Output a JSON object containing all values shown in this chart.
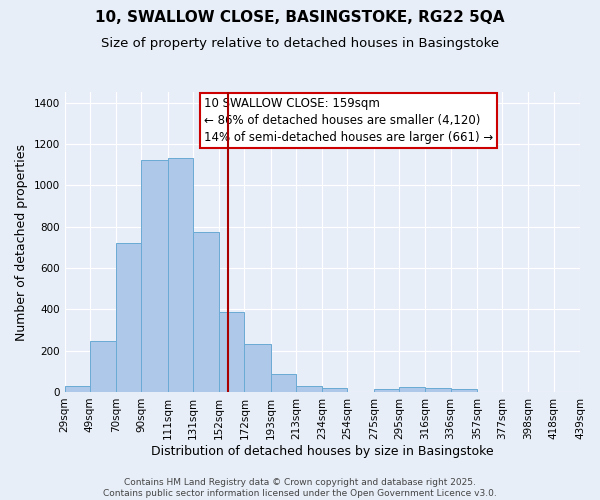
{
  "title": "10, SWALLOW CLOSE, BASINGSTOKE, RG22 5QA",
  "subtitle": "Size of property relative to detached houses in Basingstoke",
  "xlabel": "Distribution of detached houses by size in Basingstoke",
  "ylabel": "Number of detached properties",
  "bin_labels": [
    "29sqm",
    "49sqm",
    "70sqm",
    "90sqm",
    "111sqm",
    "131sqm",
    "152sqm",
    "172sqm",
    "193sqm",
    "213sqm",
    "234sqm",
    "254sqm",
    "275sqm",
    "295sqm",
    "316sqm",
    "336sqm",
    "357sqm",
    "377sqm",
    "398sqm",
    "418sqm",
    "439sqm"
  ],
  "bin_edges": [
    29,
    49,
    70,
    90,
    111,
    131,
    152,
    172,
    193,
    213,
    234,
    254,
    275,
    295,
    316,
    336,
    357,
    377,
    398,
    418,
    439
  ],
  "bar_heights": [
    30,
    245,
    720,
    1125,
    1135,
    775,
    385,
    230,
    85,
    30,
    20,
    0,
    15,
    25,
    20,
    15,
    0,
    0,
    0,
    0
  ],
  "bar_color": "#adc8e8",
  "bar_edgecolor": "#6aaad4",
  "vline_x": 159,
  "vline_color": "#aa0000",
  "annotation_title": "10 SWALLOW CLOSE: 159sqm",
  "annotation_line1": "← 86% of detached houses are smaller (4,120)",
  "annotation_line2": "14% of semi-detached houses are larger (661) →",
  "annotation_box_edgecolor": "#cc0000",
  "ylim": [
    0,
    1450
  ],
  "yticks": [
    0,
    200,
    400,
    600,
    800,
    1000,
    1200,
    1400
  ],
  "footer1": "Contains HM Land Registry data © Crown copyright and database right 2025.",
  "footer2": "Contains public sector information licensed under the Open Government Licence v3.0.",
  "background_color": "#e8eef8",
  "plot_bg_color": "#e8eef8",
  "grid_color": "#ffffff",
  "title_fontsize": 11,
  "subtitle_fontsize": 9.5,
  "axis_label_fontsize": 9,
  "tick_fontsize": 7.5,
  "annotation_fontsize": 8.5,
  "footer_fontsize": 6.5
}
